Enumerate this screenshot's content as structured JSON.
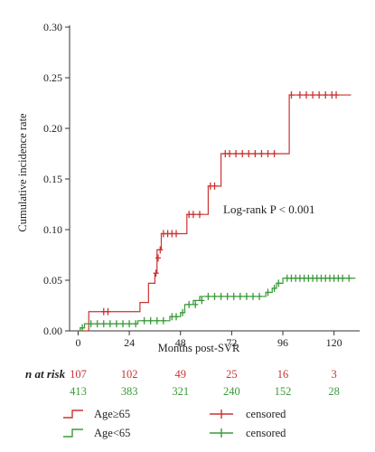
{
  "colors": {
    "age_ge65": "#cc3333",
    "age_lt65": "#3a9a3a",
    "axis": "#333333"
  },
  "chart_data": {
    "type": "line",
    "title": "",
    "xlabel": "Months post-SVR",
    "ylabel": "Cumulative incidence rate",
    "xlim": [
      -4,
      132
    ],
    "ylim": [
      0,
      0.3
    ],
    "x_ticks": [
      0,
      24,
      48,
      72,
      96,
      120
    ],
    "x_tick_labels": [
      "0",
      "24",
      "48",
      "72",
      "96",
      "120"
    ],
    "y_ticks": [
      0,
      0.05,
      0.1,
      0.15,
      0.2,
      0.25,
      0.3
    ],
    "y_tick_labels": [
      "0.00",
      "0.05",
      "0.10",
      "0.15",
      "0.20",
      "0.25",
      "0.30"
    ],
    "annotation": "Log-rank P < 0.001",
    "series": [
      {
        "name": "Age≥65",
        "color": "#cc3333",
        "step_x": [
          0,
          5,
          5,
          29,
          29,
          33,
          33,
          36,
          36,
          37,
          37,
          39,
          39,
          51,
          51,
          61,
          61,
          67,
          67,
          99,
          99,
          128
        ],
        "step_y": [
          0,
          0,
          0.019,
          0.019,
          0.028,
          0.028,
          0.047,
          0.047,
          0.057,
          0.057,
          0.08,
          0.08,
          0.096,
          0.096,
          0.115,
          0.115,
          0.143,
          0.143,
          0.175,
          0.175,
          0.233,
          0.233
        ],
        "censored_x": [
          12,
          14,
          36.5,
          37.5,
          38.5,
          40,
          42,
          44,
          46,
          52,
          54,
          57,
          62,
          64,
          69,
          71,
          74,
          77,
          80,
          83,
          86,
          89,
          92,
          100,
          104,
          107,
          110,
          113,
          116,
          119,
          121
        ],
        "censored_y": [
          0.019,
          0.019,
          0.057,
          0.072,
          0.08,
          0.096,
          0.096,
          0.096,
          0.096,
          0.115,
          0.115,
          0.115,
          0.143,
          0.143,
          0.175,
          0.175,
          0.175,
          0.175,
          0.175,
          0.175,
          0.175,
          0.175,
          0.175,
          0.233,
          0.233,
          0.233,
          0.233,
          0.233,
          0.233,
          0.233,
          0.233
        ]
      },
      {
        "name": "Age<65",
        "color": "#3a9a3a",
        "step_x": [
          0,
          1,
          1,
          3,
          3,
          28,
          28,
          43,
          43,
          48,
          48,
          50,
          50,
          54,
          54,
          57,
          57,
          88,
          88,
          91,
          91,
          93,
          93,
          96,
          96,
          130
        ],
        "step_y": [
          0,
          0,
          0.003,
          0.003,
          0.007,
          0.007,
          0.01,
          0.01,
          0.014,
          0.014,
          0.018,
          0.018,
          0.026,
          0.026,
          0.03,
          0.03,
          0.034,
          0.034,
          0.038,
          0.038,
          0.042,
          0.042,
          0.047,
          0.047,
          0.052,
          0.052
        ],
        "censored_x": [
          2,
          6,
          9,
          12,
          15,
          18,
          21,
          24,
          27,
          31,
          34,
          37,
          40,
          44,
          46,
          49,
          52,
          55,
          58,
          61,
          64,
          67,
          70,
          73,
          76,
          79,
          82,
          85,
          89,
          92,
          94,
          98,
          100,
          102,
          104,
          106,
          108,
          110,
          112,
          114,
          116,
          118,
          120,
          122,
          124,
          127
        ],
        "censored_y": [
          0.003,
          0.007,
          0.007,
          0.007,
          0.007,
          0.007,
          0.007,
          0.007,
          0.007,
          0.01,
          0.01,
          0.01,
          0.01,
          0.014,
          0.014,
          0.018,
          0.026,
          0.026,
          0.03,
          0.034,
          0.034,
          0.034,
          0.034,
          0.034,
          0.034,
          0.034,
          0.034,
          0.034,
          0.038,
          0.042,
          0.047,
          0.052,
          0.052,
          0.052,
          0.052,
          0.052,
          0.052,
          0.052,
          0.052,
          0.052,
          0.052,
          0.052,
          0.052,
          0.052,
          0.052,
          0.052
        ]
      }
    ],
    "risk_table": {
      "title": "n at risk",
      "times": [
        0,
        24,
        48,
        72,
        96,
        120
      ],
      "rows": [
        {
          "group": "Age≥65",
          "color": "#cc3333",
          "values": [
            107,
            102,
            49,
            25,
            16,
            3
          ]
        },
        {
          "group": "Age<65",
          "color": "#3a9a3a",
          "values": [
            413,
            383,
            321,
            240,
            152,
            28
          ]
        }
      ]
    },
    "legend": {
      "position": "bottom",
      "entries": [
        {
          "label": "Age≥65",
          "color": "#cc3333",
          "symbol": "step"
        },
        {
          "label": "Age<65",
          "color": "#3a9a3a",
          "symbol": "step"
        },
        {
          "label": "censored",
          "color": "#cc3333",
          "symbol": "cross"
        },
        {
          "label": "censored",
          "color": "#3a9a3a",
          "symbol": "cross"
        }
      ]
    }
  }
}
